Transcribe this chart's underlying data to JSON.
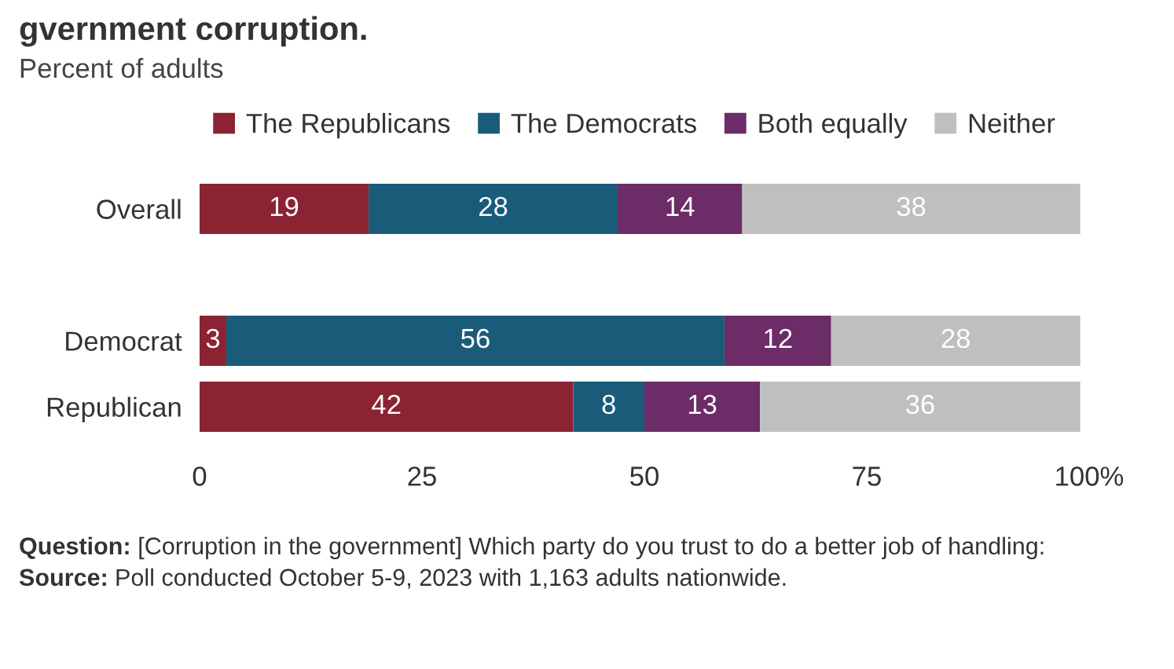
{
  "chart_data": {
    "type": "bar",
    "orientation": "horizontal",
    "stacked": true,
    "title": "gvernment corruption.",
    "subtitle": "Percent of adults",
    "categories": [
      "Overall",
      null,
      "Democrat",
      "Republican"
    ],
    "series": [
      {
        "name": "The Republicans",
        "color": "#8b2332",
        "values": [
          19,
          null,
          3,
          42
        ]
      },
      {
        "name": "The Democrats",
        "color": "#1a5b7a",
        "values": [
          28,
          null,
          56,
          8
        ]
      },
      {
        "name": "Both equally",
        "color": "#6b2c67",
        "values": [
          14,
          null,
          12,
          13
        ]
      },
      {
        "name": "Neither",
        "color": "#bfbfbf",
        "values": [
          38,
          null,
          28,
          36
        ]
      }
    ],
    "xlim": [
      0,
      100
    ],
    "xticks": [
      0,
      25,
      50,
      75,
      {
        "value": 100,
        "label": "100%"
      }
    ],
    "data_labels": true,
    "legend": "top",
    "grid": false,
    "annotations": [
      "Question: [Corruption in the government] Which party do you trust to do a better job of handling:",
      "Source: Poll conducted October 5-9, 2023 with 1,163 adults nationwide."
    ]
  }
}
